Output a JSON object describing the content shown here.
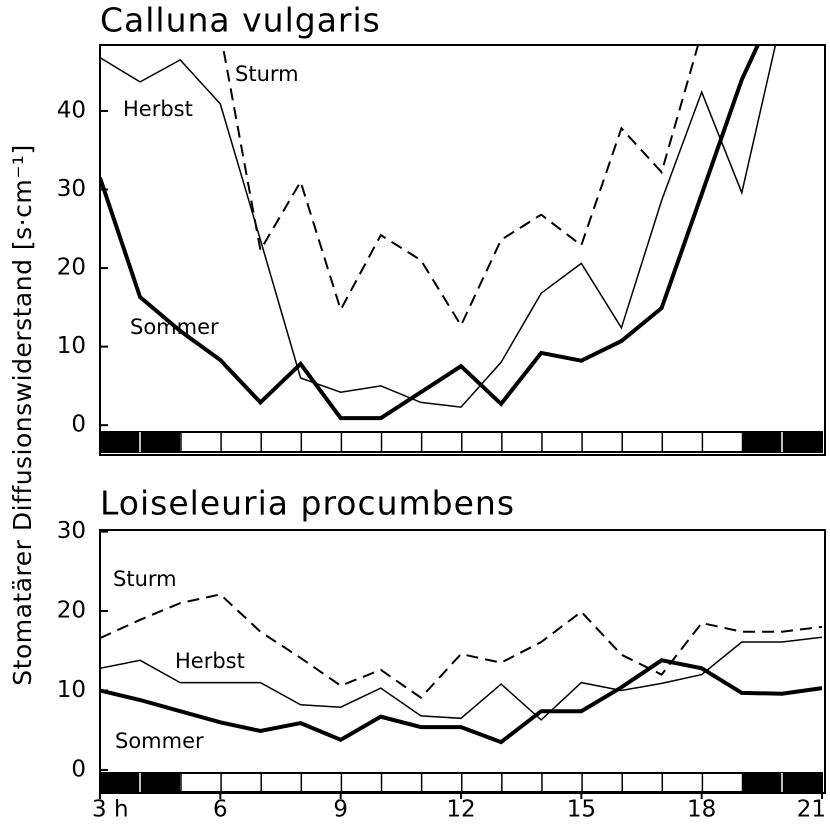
{
  "ylabel": "Stomatärer Diffusionswiderstand [s·cm⁻¹]",
  "chart_data": [
    {
      "type": "line",
      "title": "Calluna vulgaris",
      "x": [
        3,
        4,
        5,
        6,
        7,
        8,
        9,
        10,
        11,
        12,
        13,
        14,
        15,
        16,
        17,
        18,
        19,
        20,
        21
      ],
      "xlim": [
        3,
        21
      ],
      "ylim": [
        -3.8,
        48.4
      ],
      "yticks": [
        0,
        10,
        20,
        30,
        40
      ],
      "series": [
        {
          "name": "Sturm",
          "color": "#000000",
          "linestyle": "dashed",
          "linewidth": 2,
          "values": [
            null,
            null,
            null,
            50,
            22.3,
            31,
            14.7,
            24.2,
            21,
            12.7,
            23.6,
            26.8,
            22.9,
            37.8,
            32.2,
            50,
            null,
            null,
            null
          ]
        },
        {
          "name": "Herbst",
          "color": "#000000",
          "linestyle": "solid",
          "linewidth": 1.5,
          "values": [
            46.8,
            43.7,
            46.5,
            40.9,
            23.6,
            6,
            4.2,
            5,
            2.9,
            2.3,
            8,
            16.8,
            20.6,
            12.4,
            28.6,
            42.4,
            29.6,
            52,
            null
          ]
        },
        {
          "name": "Sommer",
          "color": "#000000",
          "linestyle": "solid",
          "linewidth": 4,
          "values": [
            31.5,
            16.3,
            12,
            8.3,
            2.9,
            7.8,
            0.9,
            0.9,
            4.2,
            7.5,
            2.7,
            9.2,
            8.2,
            10.7,
            14.9,
            29.4,
            44,
            55,
            null
          ]
        }
      ]
    },
    {
      "type": "line",
      "title": "Loiseleuria procumbens",
      "x": [
        3,
        4,
        5,
        6,
        7,
        8,
        9,
        10,
        11,
        12,
        13,
        14,
        15,
        16,
        17,
        18,
        19,
        20,
        21
      ],
      "xlim": [
        3,
        21
      ],
      "xticks": [
        {
          "value": 3,
          "label": "3 h"
        },
        6,
        9,
        12,
        15,
        18,
        21
      ],
      "ylim": [
        -2.9,
        30.2
      ],
      "yticks": [
        0,
        10,
        20,
        30
      ],
      "series": [
        {
          "name": "Sturm",
          "color": "#000000",
          "linestyle": "dashed",
          "linewidth": 2,
          "values": [
            16.6,
            18.9,
            21,
            22.1,
            17.4,
            14.1,
            10.6,
            12.6,
            9.1,
            14.6,
            13.5,
            16.1,
            19.9,
            14.5,
            12,
            18.5,
            17.4,
            17.4,
            18
          ]
        },
        {
          "name": "Herbst",
          "color": "#000000",
          "linestyle": "solid",
          "linewidth": 1.5,
          "values": [
            12.8,
            13.8,
            11,
            11,
            11,
            8.2,
            7.9,
            10.3,
            6.8,
            6.5,
            10.8,
            6.3,
            11,
            10,
            10.9,
            12,
            16.1,
            16.1,
            16.7
          ]
        },
        {
          "name": "Sommer",
          "color": "#000000",
          "linestyle": "solid",
          "linewidth": 4,
          "values": [
            10,
            8.8,
            7.4,
            6,
            4.9,
            5.9,
            3.8,
            6.7,
            5.4,
            5.4,
            3.5,
            7.4,
            7.4,
            10.4,
            13.8,
            12.8,
            9.7,
            9.6,
            10.3
          ]
        }
      ]
    }
  ]
}
